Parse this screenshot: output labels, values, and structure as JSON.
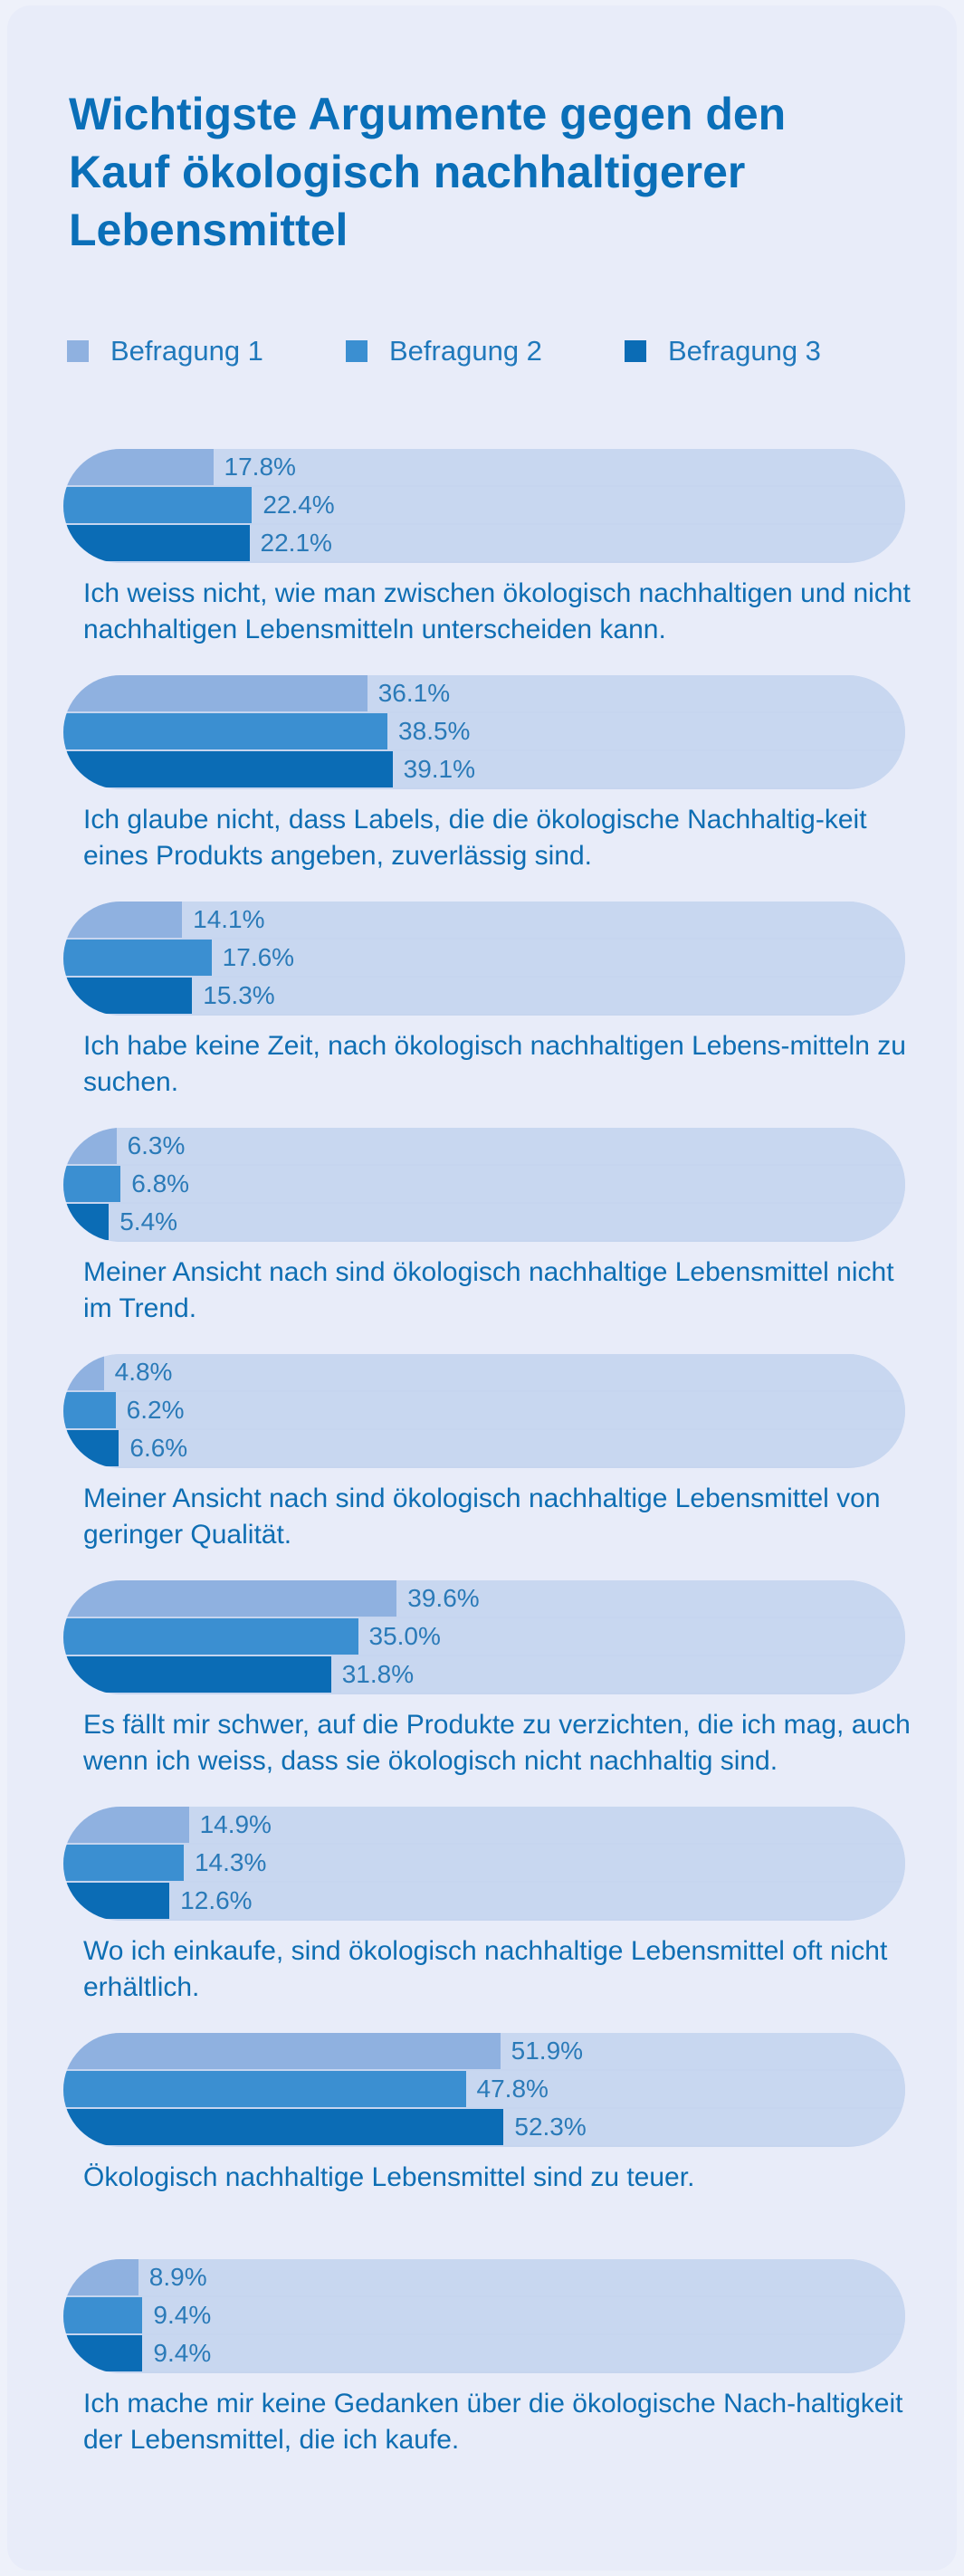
{
  "chart_data": {
    "type": "bar",
    "title": "Wichtigste Argumente gegen den Kauf ökologisch nachhaltigerer Lebensmittel",
    "legend_position": "top",
    "xlim": [
      0,
      100
    ],
    "value_suffix": "%",
    "series": [
      {
        "name": "Befragung 1",
        "color": "#8fb1e0"
      },
      {
        "name": "Befragung 2",
        "color": "#3b8fd1"
      },
      {
        "name": "Befragung 3",
        "color": "#0b6cb5"
      }
    ],
    "categories": [
      {
        "label": "Ich weiss nicht, wie man zwischen ökologisch nachhaltigen und nicht nachhaltigen Lebensmitteln unterscheiden kann.",
        "values": [
          17.8,
          22.4,
          22.1
        ]
      },
      {
        "label": "Ich glaube nicht, dass Labels, die die ökologische Nachhaltig-keit eines Produkts angeben, zuverlässig sind.",
        "values": [
          36.1,
          38.5,
          39.1
        ]
      },
      {
        "label": "Ich habe keine Zeit, nach ökologisch nachhaltigen Lebens-mitteln zu suchen.",
        "values": [
          14.1,
          17.6,
          15.3
        ]
      },
      {
        "label": "Meiner Ansicht nach sind ökologisch nachhaltige Lebensmittel nicht im Trend.",
        "values": [
          6.3,
          6.8,
          5.4
        ]
      },
      {
        "label": "Meiner Ansicht nach sind ökologisch nachhaltige Lebensmittel von geringer Qualität.",
        "values": [
          4.8,
          6.2,
          6.6
        ]
      },
      {
        "label": "Es fällt mir schwer, auf die Produkte zu verzichten, die ich mag, auch wenn ich weiss, dass sie ökologisch nicht nachhaltig sind.",
        "values": [
          39.6,
          35.0,
          31.8
        ]
      },
      {
        "label": "Wo ich einkaufe, sind ökologisch nachhaltige Lebensmittel oft nicht erhältlich.",
        "values": [
          14.9,
          14.3,
          12.6
        ]
      },
      {
        "label": "Ökologisch nachhaltige Lebensmittel sind zu teuer.",
        "values": [
          51.9,
          47.8,
          52.3
        ]
      },
      {
        "label": "Ich mache mir keine Gedanken über die ökologische Nach-haltigkeit der Lebensmittel, die ich kaufe.",
        "values": [
          8.9,
          9.4,
          9.4
        ]
      }
    ]
  }
}
